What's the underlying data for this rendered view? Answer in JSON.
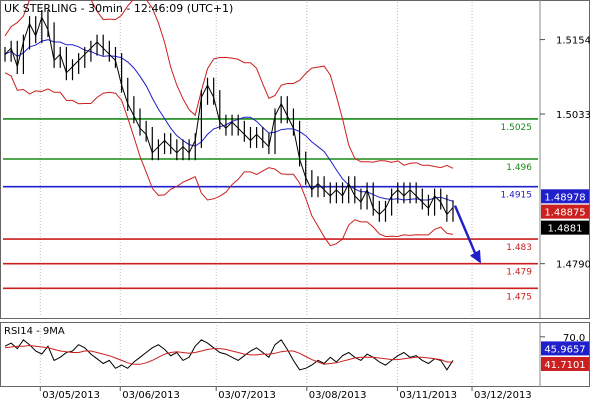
{
  "chart_data": [
    {
      "type": "candlestick",
      "title": "UK STERLING - 30min - 12:46:09 (UTC+1)",
      "ylim": [
        1.4705,
        1.5215
      ],
      "y_ticks": [
        {
          "label": "1.5154",
          "value": 1.5154
        },
        {
          "label": "1.5033",
          "value": 1.5033
        },
        {
          "label": "1.4790",
          "value": 1.479
        }
      ],
      "x_date_labels": [
        "03/05/2013",
        "03/06/2013",
        "03/07/2013",
        "03/08/2013",
        "03/11/2013",
        "03/12/2013"
      ],
      "horizontal_levels": [
        {
          "label": "1.5025",
          "value": 1.5025,
          "color": "#1a8a1a"
        },
        {
          "label": "1.496",
          "value": 1.496,
          "color": "#1a8a1a"
        },
        {
          "label": "1.4915",
          "value": 1.4915,
          "color": "#1f1fcc"
        },
        {
          "label": "1.483",
          "value": 1.483,
          "color": "#cc1f1f"
        },
        {
          "label": "1.479",
          "value": 1.479,
          "color": "#cc1f1f"
        },
        {
          "label": "1.475",
          "value": 1.475,
          "color": "#cc1f1f"
        }
      ],
      "price_tags": [
        {
          "label": "1.48978",
          "value": 1.48978,
          "bg": "#1f1fcc",
          "fg": "#ffffff"
        },
        {
          "label": "1.48875",
          "value": 1.48875,
          "bg": "#cc1f1f",
          "fg": "#ffffff"
        },
        {
          "label": "1.4881",
          "value": 1.4881,
          "bg": "#000000",
          "fg": "#ffffff"
        }
      ],
      "series_close": [
        1.513,
        1.514,
        1.511,
        1.515,
        1.518,
        1.516,
        1.519,
        1.517,
        1.512,
        1.513,
        1.51,
        1.511,
        1.512,
        1.513,
        1.514,
        1.515,
        1.514,
        1.513,
        1.512,
        1.508,
        1.505,
        1.503,
        1.501,
        1.5,
        1.497,
        1.498,
        1.499,
        1.498,
        1.497,
        1.498,
        1.497,
        1.499,
        1.506,
        1.508,
        1.506,
        1.502,
        1.501,
        1.502,
        1.501,
        1.5,
        1.499,
        1.5,
        1.499,
        1.498,
        1.503,
        1.505,
        1.503,
        1.501,
        1.496,
        1.493,
        1.491,
        1.492,
        1.491,
        1.49,
        1.491,
        1.49,
        1.492,
        1.49,
        1.489,
        1.491,
        1.488,
        1.487,
        1.488,
        1.49,
        1.491,
        1.49,
        1.491,
        1.49,
        1.489,
        1.488,
        1.49,
        1.489,
        1.487,
        1.4881
      ],
      "colors": {
        "price": "#000000",
        "bands": "#cc1f1f",
        "ma": "#1f1fcc",
        "arrow": "#1f1fcc"
      }
    },
    {
      "type": "line",
      "title": "RSI14 - 9MA",
      "ylim": [
        10,
        85
      ],
      "y_ticks": [
        {
          "label": "70.0",
          "value": 70
        }
      ],
      "series": [
        {
          "name": "RSI14",
          "values": [
            58,
            62,
            55,
            66,
            60,
            52,
            48,
            58,
            40,
            44,
            50,
            52,
            60,
            56,
            48,
            42,
            36,
            40,
            30,
            34,
            30,
            38,
            44,
            50,
            56,
            60,
            54,
            46,
            50,
            40,
            44,
            58,
            66,
            62,
            56,
            50,
            48,
            44,
            40,
            46,
            52,
            56,
            50,
            44,
            60,
            66,
            54,
            40,
            28,
            30,
            34,
            40,
            36,
            44,
            38,
            46,
            50,
            44,
            40,
            48,
            44,
            38,
            34,
            40,
            46,
            50,
            44,
            46,
            40,
            36,
            42,
            40,
            28,
            40
          ]
        },
        {
          "name": "9MA",
          "values": [
            56,
            57,
            58,
            58,
            59,
            58,
            57,
            56,
            54,
            52,
            51,
            50,
            50,
            52,
            52,
            50,
            48,
            46,
            43,
            40,
            37,
            35,
            35,
            37,
            40,
            44,
            48,
            50,
            51,
            50,
            49,
            50,
            52,
            54,
            55,
            55,
            54,
            52,
            50,
            48,
            47,
            47,
            48,
            48,
            49,
            51,
            52,
            52,
            49,
            45,
            41,
            38,
            35,
            36,
            37,
            39,
            41,
            43,
            44,
            44,
            44,
            43,
            42,
            41,
            41,
            42,
            43,
            44,
            44,
            43,
            42,
            41,
            38,
            38
          ]
        }
      ],
      "current_value_tags": [
        {
          "label": "45.9657",
          "bg": "#1f1fcc",
          "fg": "#ffffff"
        },
        {
          "label": "41.7101",
          "bg": "#cc1f1f",
          "fg": "#ffffff"
        }
      ]
    }
  ]
}
